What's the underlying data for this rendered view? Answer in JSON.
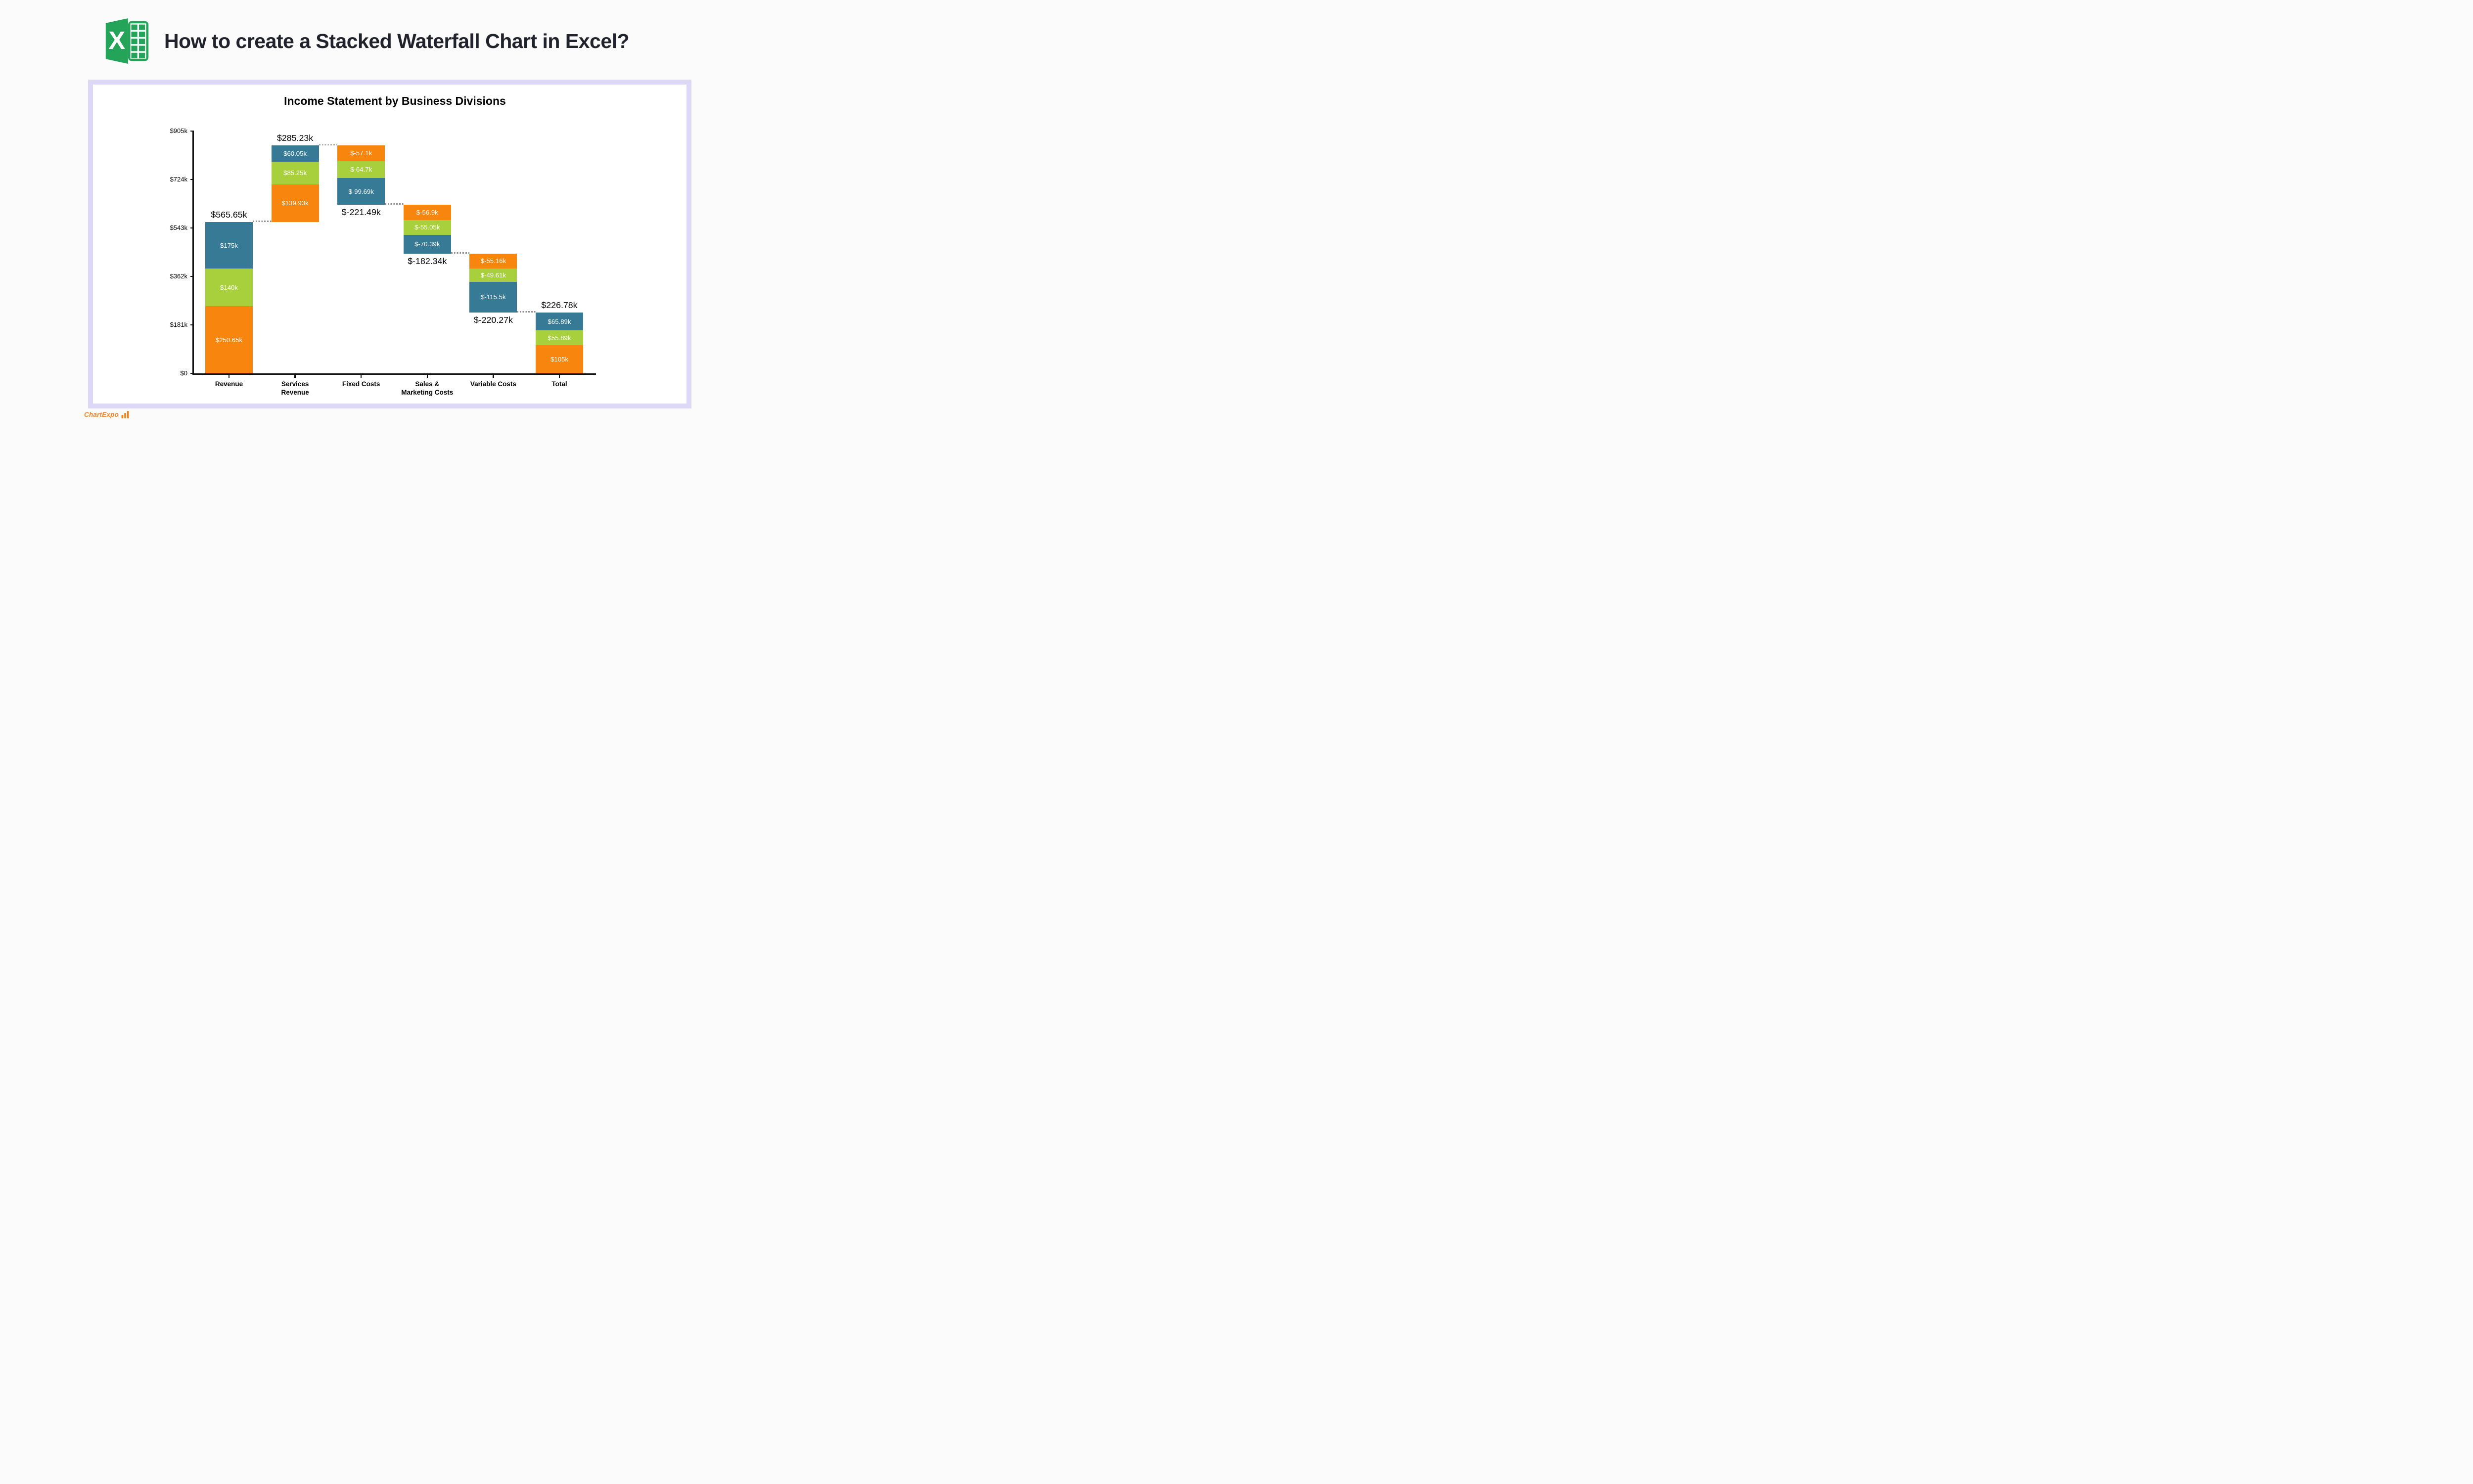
{
  "header": {
    "title": "How to create a Stacked Waterfall Chart in Excel?"
  },
  "footer": {
    "brand": "ChartExpo"
  },
  "chart_data": {
    "type": "bar",
    "variant": "stacked-waterfall",
    "title": "Income Statement by Business Divisions",
    "unit": "USD thousands (k)",
    "grid": "off",
    "legend": "none",
    "colors": {
      "teal": "#377a96",
      "green": "#a7d03c",
      "orange": "#f8860e"
    },
    "y_axis": {
      "range": [
        0,
        905
      ],
      "ticks": [
        {
          "value": 0,
          "label": "$0"
        },
        {
          "value": 181,
          "label": "$181k"
        },
        {
          "value": 362,
          "label": "$362k"
        },
        {
          "value": 543,
          "label": "$543k"
        },
        {
          "value": 724,
          "label": "$724k"
        },
        {
          "value": 905,
          "label": "$905k"
        }
      ]
    },
    "bars": [
      {
        "category": "Revenue",
        "label": "$565.65k",
        "label_pos": "above",
        "base_k": 0,
        "segments": [
          {
            "color": "teal",
            "value_k": 175,
            "label": "$175k"
          },
          {
            "color": "green",
            "value_k": 140,
            "label": "$140k"
          },
          {
            "color": "orange",
            "value_k": 250.65,
            "label": "$250.65k"
          }
        ]
      },
      {
        "category": "Services\nRevenue",
        "label": "$285.23k",
        "label_pos": "above",
        "base_k": 565.65,
        "segments": [
          {
            "color": "teal",
            "value_k": 60.05,
            "label": "$60.05k"
          },
          {
            "color": "green",
            "value_k": 85.25,
            "label": "$85.25k"
          },
          {
            "color": "orange",
            "value_k": 139.93,
            "label": "$139.93k"
          }
        ]
      },
      {
        "category": "Fixed Costs",
        "label": "$-221.49k",
        "label_pos": "below",
        "base_k": 629.39,
        "segments": [
          {
            "color": "orange",
            "value_k": 57.1,
            "label": "$-57.1k"
          },
          {
            "color": "green",
            "value_k": 64.7,
            "label": "$-64.7k"
          },
          {
            "color": "teal",
            "value_k": 99.69,
            "label": "$-99.69k"
          }
        ]
      },
      {
        "category": "Sales &\nMarketing Costs",
        "label": "$-182.34k",
        "label_pos": "below",
        "base_k": 447.05,
        "segments": [
          {
            "color": "orange",
            "value_k": 56.9,
            "label": "$-56.9k"
          },
          {
            "color": "green",
            "value_k": 55.05,
            "label": "$-55.05k"
          },
          {
            "color": "teal",
            "value_k": 70.39,
            "label": "$-70.39k"
          }
        ]
      },
      {
        "category": "Variable Costs",
        "label": "$-220.27k",
        "label_pos": "below",
        "base_k": 226.78,
        "segments": [
          {
            "color": "orange",
            "value_k": 55.16,
            "label": "$-55.16k"
          },
          {
            "color": "green",
            "value_k": 49.61,
            "label": "$-49.61k"
          },
          {
            "color": "teal",
            "value_k": 115.5,
            "label": "$-115.5k"
          }
        ]
      },
      {
        "category": "Total",
        "label": "$226.78k",
        "label_pos": "above",
        "base_k": 0,
        "segments": [
          {
            "color": "teal",
            "value_k": 65.89,
            "label": "$65.89k"
          },
          {
            "color": "green",
            "value_k": 55.89,
            "label": "$55.89k"
          },
          {
            "color": "orange",
            "value_k": 105,
            "label": "$105k"
          }
        ]
      }
    ],
    "connectors_k": [
      565.65,
      850.88,
      629.39,
      447.05,
      226.78
    ]
  }
}
